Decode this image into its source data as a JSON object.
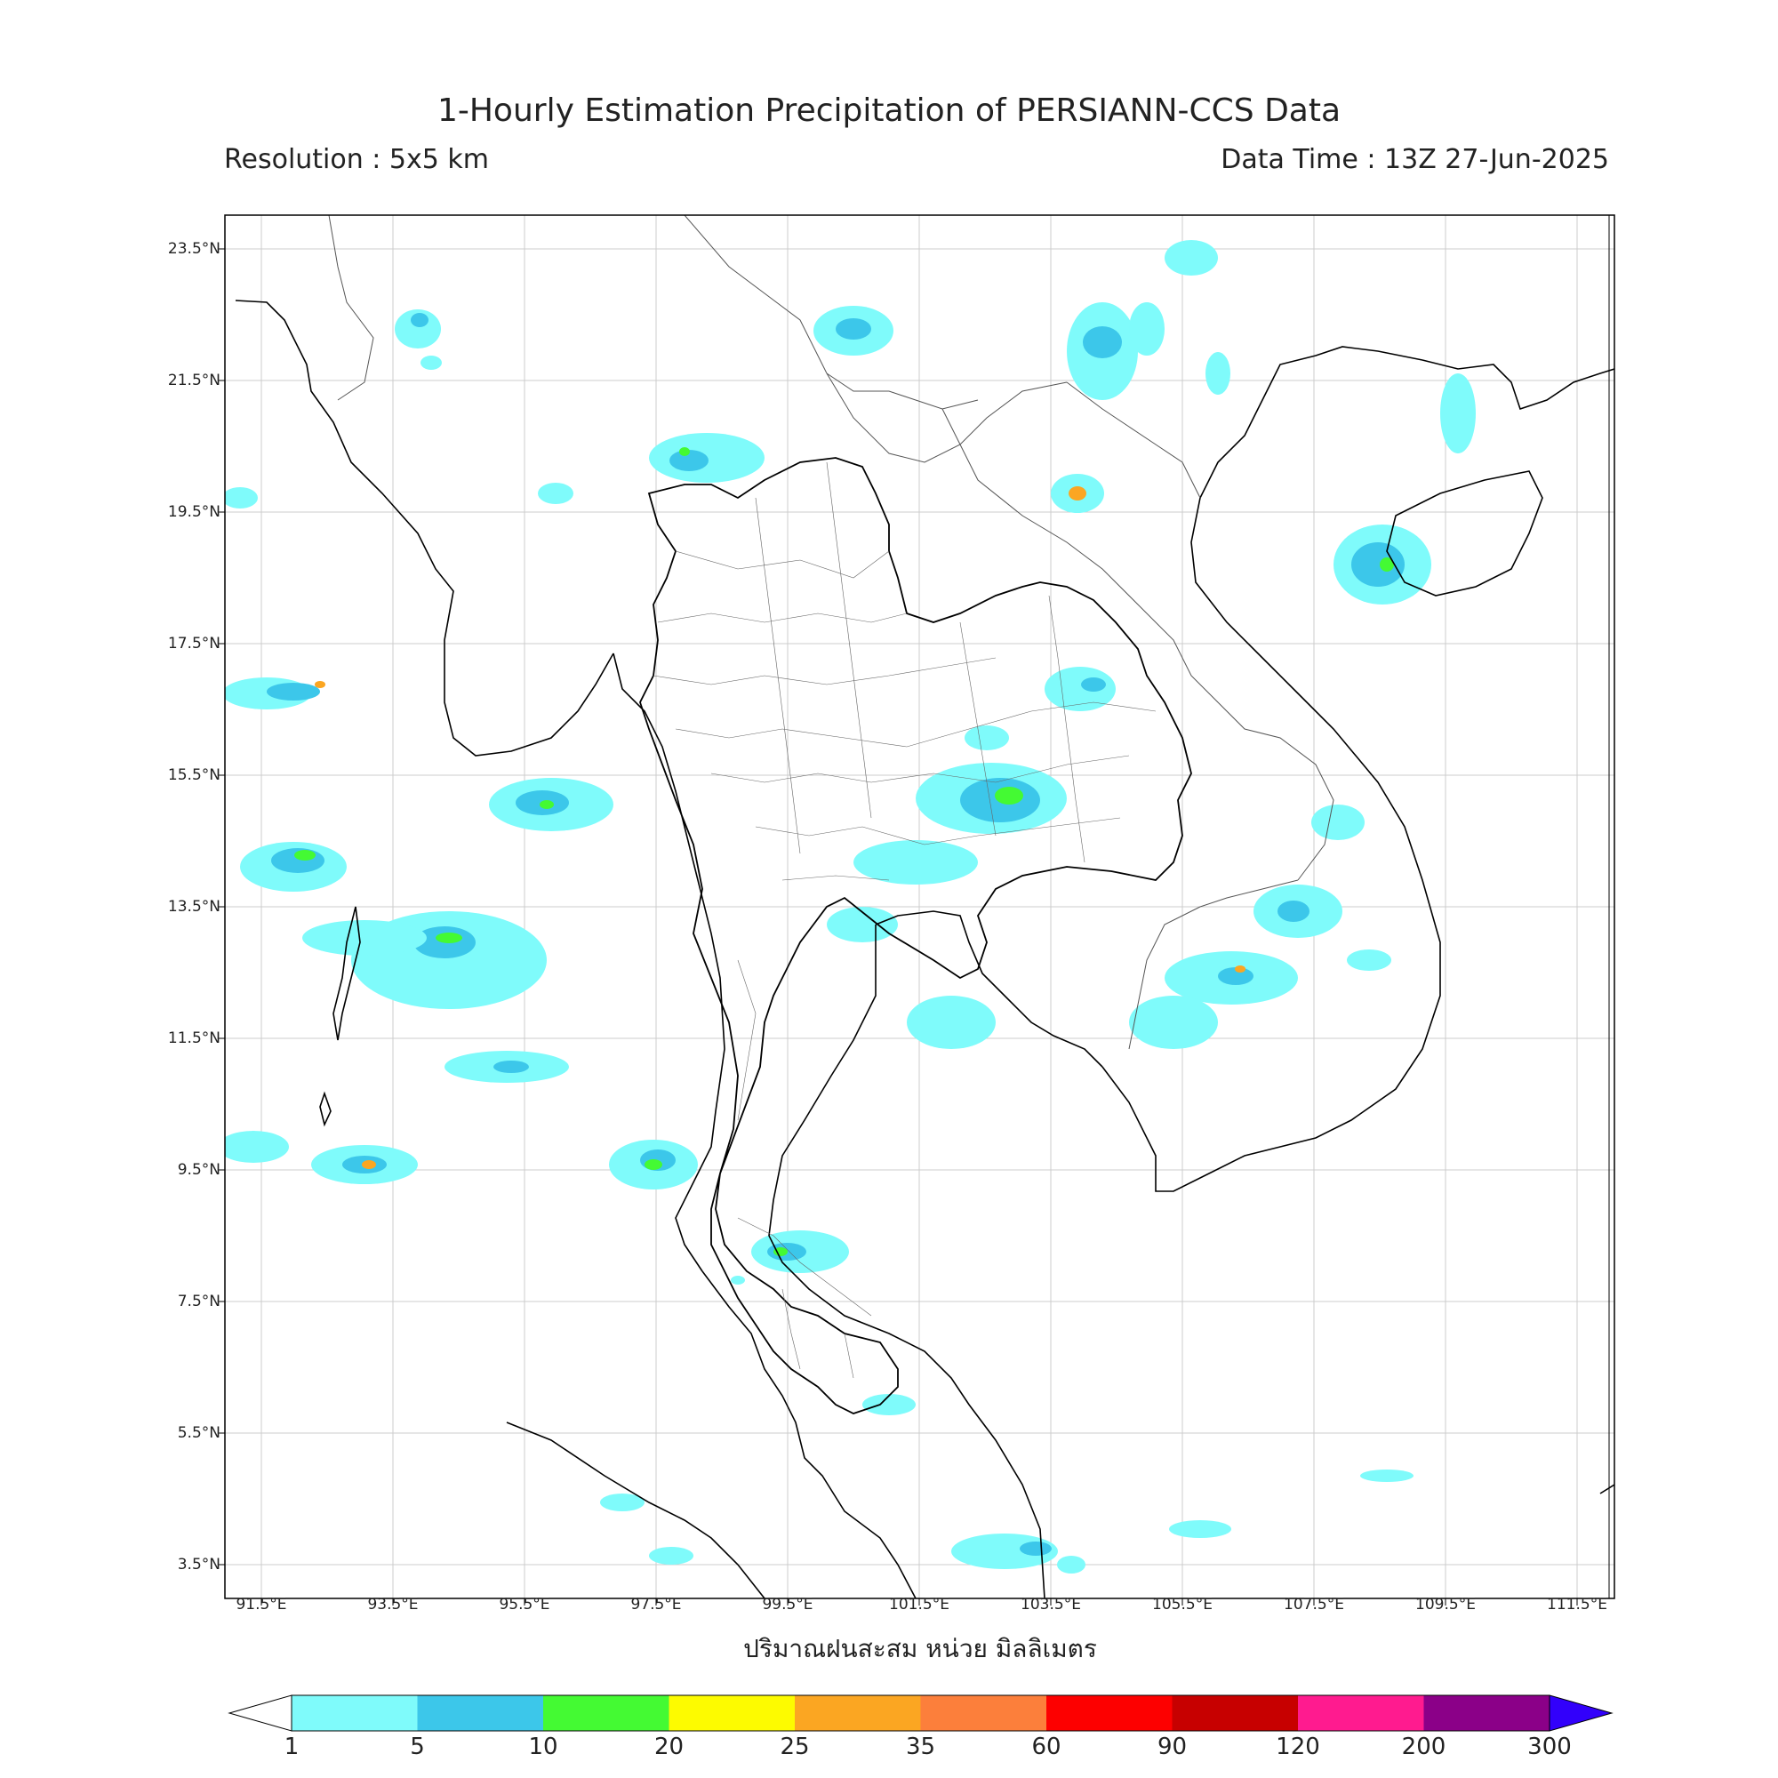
{
  "header": {
    "title": "1-Hourly Estimation Precipitation of PERSIANN-CCS Data",
    "resolution": "Resolution : 5x5 km",
    "data_time": "Data Time : 13Z 27-Jun-2025"
  },
  "axes": {
    "lat_labels": [
      "23.5°N",
      "21.5°N",
      "19.5°N",
      "17.5°N",
      "15.5°N",
      "13.5°N",
      "11.5°N",
      "9.5°N",
      "7.5°N",
      "5.5°N",
      "3.5°N"
    ],
    "lon_labels": [
      "91.5°E",
      "93.5°E",
      "95.5°E",
      "97.5°E",
      "99.5°E",
      "101.5°E",
      "103.5°E",
      "105.5°E",
      "107.5°E",
      "109.5°E",
      "111.5°E"
    ]
  },
  "colorbar": {
    "unit_label": "ปริมาณฝนสะสม หน่วย มิลลิเมตร",
    "ticks": [
      "1",
      "5",
      "10",
      "20",
      "25",
      "35",
      "60",
      "90",
      "120",
      "200",
      "300"
    ],
    "colors": [
      "#7ffbfb",
      "#3cc7ea",
      "#44fa33",
      "#fdfb00",
      "#fba622",
      "#fc7f3b",
      "#fd0000",
      "#c70000",
      "#ff1b8f",
      "#8b0088",
      "#3200fb"
    ]
  }
}
